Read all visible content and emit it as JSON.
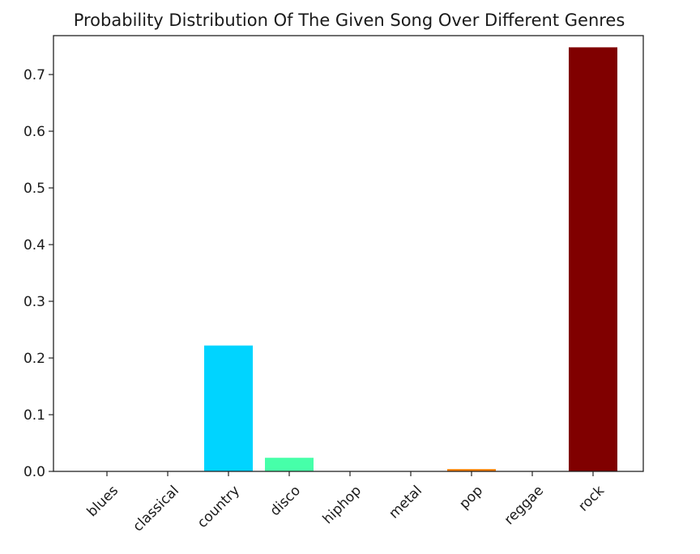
{
  "chart_data": {
    "type": "bar",
    "title": "Probability Distribution Of The Given Song Over Different Genres",
    "xlabel": "",
    "ylabel": "",
    "categories": [
      "blues",
      "classical",
      "country",
      "disco",
      "hiphop",
      "metal",
      "pop",
      "reggae",
      "rock"
    ],
    "values": [
      0.0,
      0.0,
      0.222,
      0.024,
      0.0,
      0.0,
      0.004,
      0.0,
      0.748
    ],
    "colors": [
      "#000080",
      "#0000f0",
      "#00d4ff",
      "#46ffa9",
      "#aaff4d",
      "#ffe600",
      "#ff7e00",
      "#e30000",
      "#800000"
    ],
    "ylim": [
      0,
      0.7686
    ],
    "yticks": [
      0.0,
      0.1,
      0.2,
      0.3,
      0.4,
      0.5,
      0.6,
      0.7
    ],
    "ytick_labels": [
      "0.0",
      "0.1",
      "0.2",
      "0.3",
      "0.4",
      "0.5",
      "0.6",
      "0.7"
    ],
    "grid": false,
    "legend": "none",
    "xtick_rotation_deg": 45
  }
}
